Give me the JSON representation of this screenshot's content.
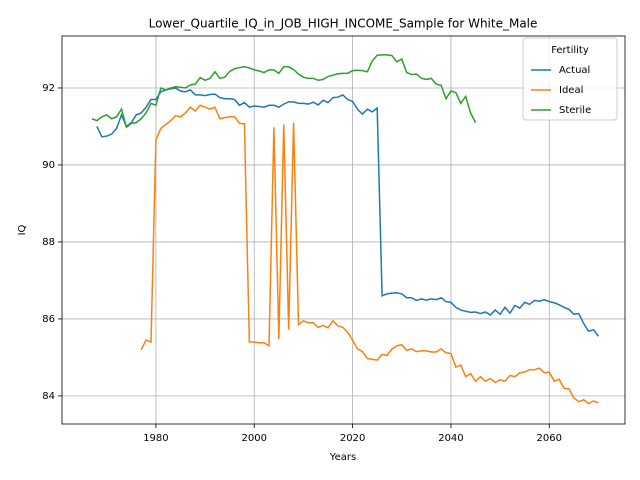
{
  "chart_data": {
    "type": "line",
    "title": "Lower_Quartile_IQ_in_JOB_HIGH_INCOME_Sample for White_Male",
    "x_label": "Years",
    "y_label": "IQ",
    "legend_title": "Fertility",
    "legend_loc": "upper right",
    "grid": true,
    "x": [
      1967,
      1968,
      1969,
      1970,
      1971,
      1972,
      1973,
      1974,
      1975,
      1976,
      1977,
      1978,
      1979,
      1980,
      1981,
      1982,
      1983,
      1984,
      1985,
      1986,
      1987,
      1988,
      1989,
      1990,
      1991,
      1992,
      1993,
      1994,
      1995,
      1996,
      1997,
      1998,
      1999,
      2000,
      2001,
      2002,
      2003,
      2004,
      2005,
      2006,
      2007,
      2008,
      2009,
      2010,
      2011,
      2012,
      2013,
      2014,
      2015,
      2016,
      2017,
      2018,
      2019,
      2020,
      2021,
      2022,
      2023,
      2024,
      2025,
      2026,
      2027,
      2028,
      2029,
      2030,
      2031,
      2032,
      2033,
      2034,
      2035,
      2036,
      2037,
      2038,
      2039,
      2040,
      2041,
      2042,
      2043,
      2044,
      2045,
      2046,
      2047,
      2048,
      2049,
      2050,
      2051,
      2052,
      2053,
      2054,
      2055,
      2056,
      2057,
      2058,
      2059,
      2060,
      2061,
      2062,
      2063,
      2064,
      2065,
      2066,
      2067,
      2068,
      2069,
      2070
    ],
    "series": [
      {
        "name": "Actual",
        "color": "#1f77b4",
        "values": [
          null,
          91.0,
          90.73,
          90.75,
          90.8,
          90.95,
          91.3,
          91.0,
          91.1,
          91.3,
          91.35,
          91.5,
          91.7,
          91.7,
          91.9,
          91.95,
          91.98,
          92.0,
          91.92,
          91.9,
          91.95,
          91.82,
          91.82,
          91.8,
          91.83,
          91.84,
          91.75,
          91.72,
          91.72,
          91.7,
          91.55,
          91.62,
          91.5,
          91.53,
          91.52,
          91.5,
          91.55,
          91.55,
          91.5,
          91.58,
          91.64,
          91.64,
          91.6,
          91.6,
          91.58,
          91.63,
          91.56,
          91.68,
          91.62,
          91.75,
          91.76,
          91.82,
          91.7,
          91.65,
          91.45,
          91.32,
          91.45,
          91.38,
          91.48,
          86.6,
          86.65,
          86.67,
          86.68,
          86.65,
          86.55,
          86.55,
          86.48,
          86.52,
          86.49,
          86.52,
          86.5,
          86.55,
          86.45,
          86.43,
          86.3,
          86.23,
          86.2,
          86.17,
          86.18,
          86.14,
          86.18,
          86.1,
          86.23,
          86.12,
          86.3,
          86.15,
          86.35,
          86.28,
          86.43,
          86.38,
          86.48,
          86.46,
          86.5,
          86.45,
          86.42,
          86.37,
          86.3,
          86.25,
          86.12,
          86.14,
          85.88,
          85.68,
          85.72,
          85.55
        ]
      },
      {
        "name": "Ideal",
        "color": "#ff7f0e",
        "values": [
          null,
          null,
          null,
          null,
          null,
          null,
          null,
          null,
          null,
          null,
          85.2,
          85.45,
          85.4,
          90.65,
          90.95,
          91.05,
          91.15,
          91.28,
          91.25,
          91.35,
          91.5,
          91.4,
          91.55,
          91.5,
          91.45,
          91.5,
          91.2,
          91.23,
          91.25,
          91.25,
          91.08,
          91.07,
          85.4,
          85.4,
          85.38,
          85.38,
          85.3,
          90.98,
          85.48,
          91.05,
          85.72,
          91.1,
          85.85,
          85.95,
          85.9,
          85.9,
          85.78,
          85.83,
          85.77,
          85.95,
          85.82,
          85.78,
          85.65,
          85.45,
          85.22,
          85.15,
          84.97,
          84.95,
          84.93,
          85.08,
          85.05,
          85.22,
          85.3,
          85.33,
          85.18,
          85.22,
          85.15,
          85.17,
          85.17,
          85.14,
          85.14,
          85.22,
          85.12,
          85.1,
          84.75,
          84.8,
          84.5,
          84.58,
          84.38,
          84.5,
          84.38,
          84.45,
          84.35,
          84.42,
          84.38,
          84.53,
          84.5,
          84.6,
          84.62,
          84.68,
          84.68,
          84.72,
          84.6,
          84.62,
          84.38,
          84.43,
          84.2,
          84.18,
          83.95,
          83.85,
          83.9,
          83.8,
          83.87,
          83.82
        ]
      },
      {
        "name": "Sterile",
        "color": "#2ca02c",
        "values": [
          91.2,
          91.15,
          91.25,
          91.3,
          91.2,
          91.25,
          91.45,
          90.98,
          91.08,
          91.1,
          91.2,
          91.35,
          91.6,
          91.55,
          92.0,
          91.95,
          92.0,
          92.03,
          92.02,
          92.0,
          92.08,
          92.1,
          92.27,
          92.2,
          92.25,
          92.42,
          92.25,
          92.28,
          92.43,
          92.5,
          92.53,
          92.55,
          92.52,
          92.47,
          92.44,
          92.4,
          92.47,
          92.47,
          92.38,
          92.55,
          92.55,
          92.48,
          92.36,
          92.28,
          92.25,
          92.25,
          92.2,
          92.22,
          92.3,
          92.33,
          92.37,
          92.38,
          92.38,
          92.45,
          92.46,
          92.45,
          92.42,
          92.7,
          92.85,
          92.86,
          92.86,
          92.84,
          92.68,
          92.75,
          92.4,
          92.35,
          92.36,
          92.25,
          92.22,
          92.25,
          92.1,
          92.07,
          91.72,
          91.92,
          91.88,
          91.6,
          91.78,
          91.35,
          91.1,
          null,
          null,
          null,
          null,
          null,
          null,
          null,
          null,
          null,
          null,
          null,
          null,
          null,
          null,
          null,
          null,
          null,
          null,
          null,
          null,
          null,
          null,
          null,
          null,
          null
        ]
      }
    ],
    "xlim": [
      1960.9,
      2075.4
    ],
    "xticks": [
      1980,
      2000,
      2020,
      2040,
      2060
    ],
    "ylim": [
      83.27,
      93.35
    ],
    "yticks": [
      84,
      86,
      88,
      90,
      92
    ]
  }
}
